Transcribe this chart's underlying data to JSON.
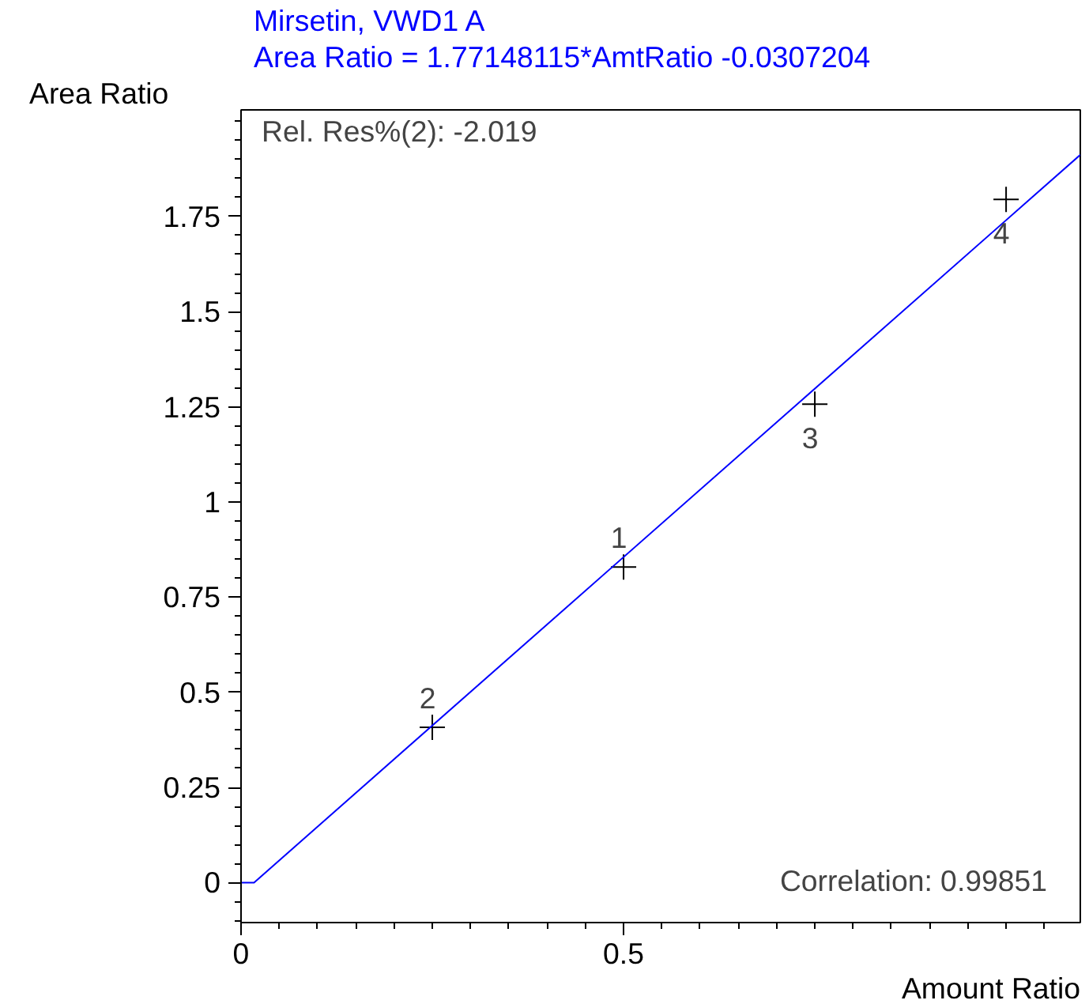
{
  "chart_data": {
    "type": "scatter",
    "title": "Mirsetin, VWD1 A",
    "subtitle": "Area Ratio = 1.77148115*AmtRatio -0.0307204",
    "xlabel": "Amount Ratio",
    "ylabel": "Area Ratio",
    "series": [
      {
        "color": "#000000",
        "marker": "cross",
        "x": [
          0.5,
          0.25,
          0.75,
          1.0
        ],
        "values": [
          0.829,
          0.408,
          1.257,
          1.795
        ]
      },
      {
        "type": "line",
        "color": "#0000ff",
        "marker": "none",
        "x": [
          0,
          0.017,
          1.097
        ],
        "values": [
          0,
          0,
          1.912
        ]
      }
    ],
    "annotations": [
      "Rel. Res%(2): -2.019",
      "Correlation: 0.99851",
      {
        "text": "1",
        "x": 0.5,
        "y": 0.829
      },
      {
        "text": "2",
        "x": 0.25,
        "y": 0.408
      },
      {
        "text": "3",
        "x": 0.75,
        "y": 1.257
      },
      {
        "text": "4",
        "x": 1.0,
        "y": 1.795
      }
    ],
    "xlim": [
      0,
      1.097
    ],
    "ylim": [
      -0.105,
      2.03
    ],
    "xticks": [
      0,
      0.5
    ],
    "yticks": [
      0,
      0.25,
      0.5,
      0.75,
      1,
      1.25,
      1.5,
      1.75
    ],
    "grid": false
  }
}
